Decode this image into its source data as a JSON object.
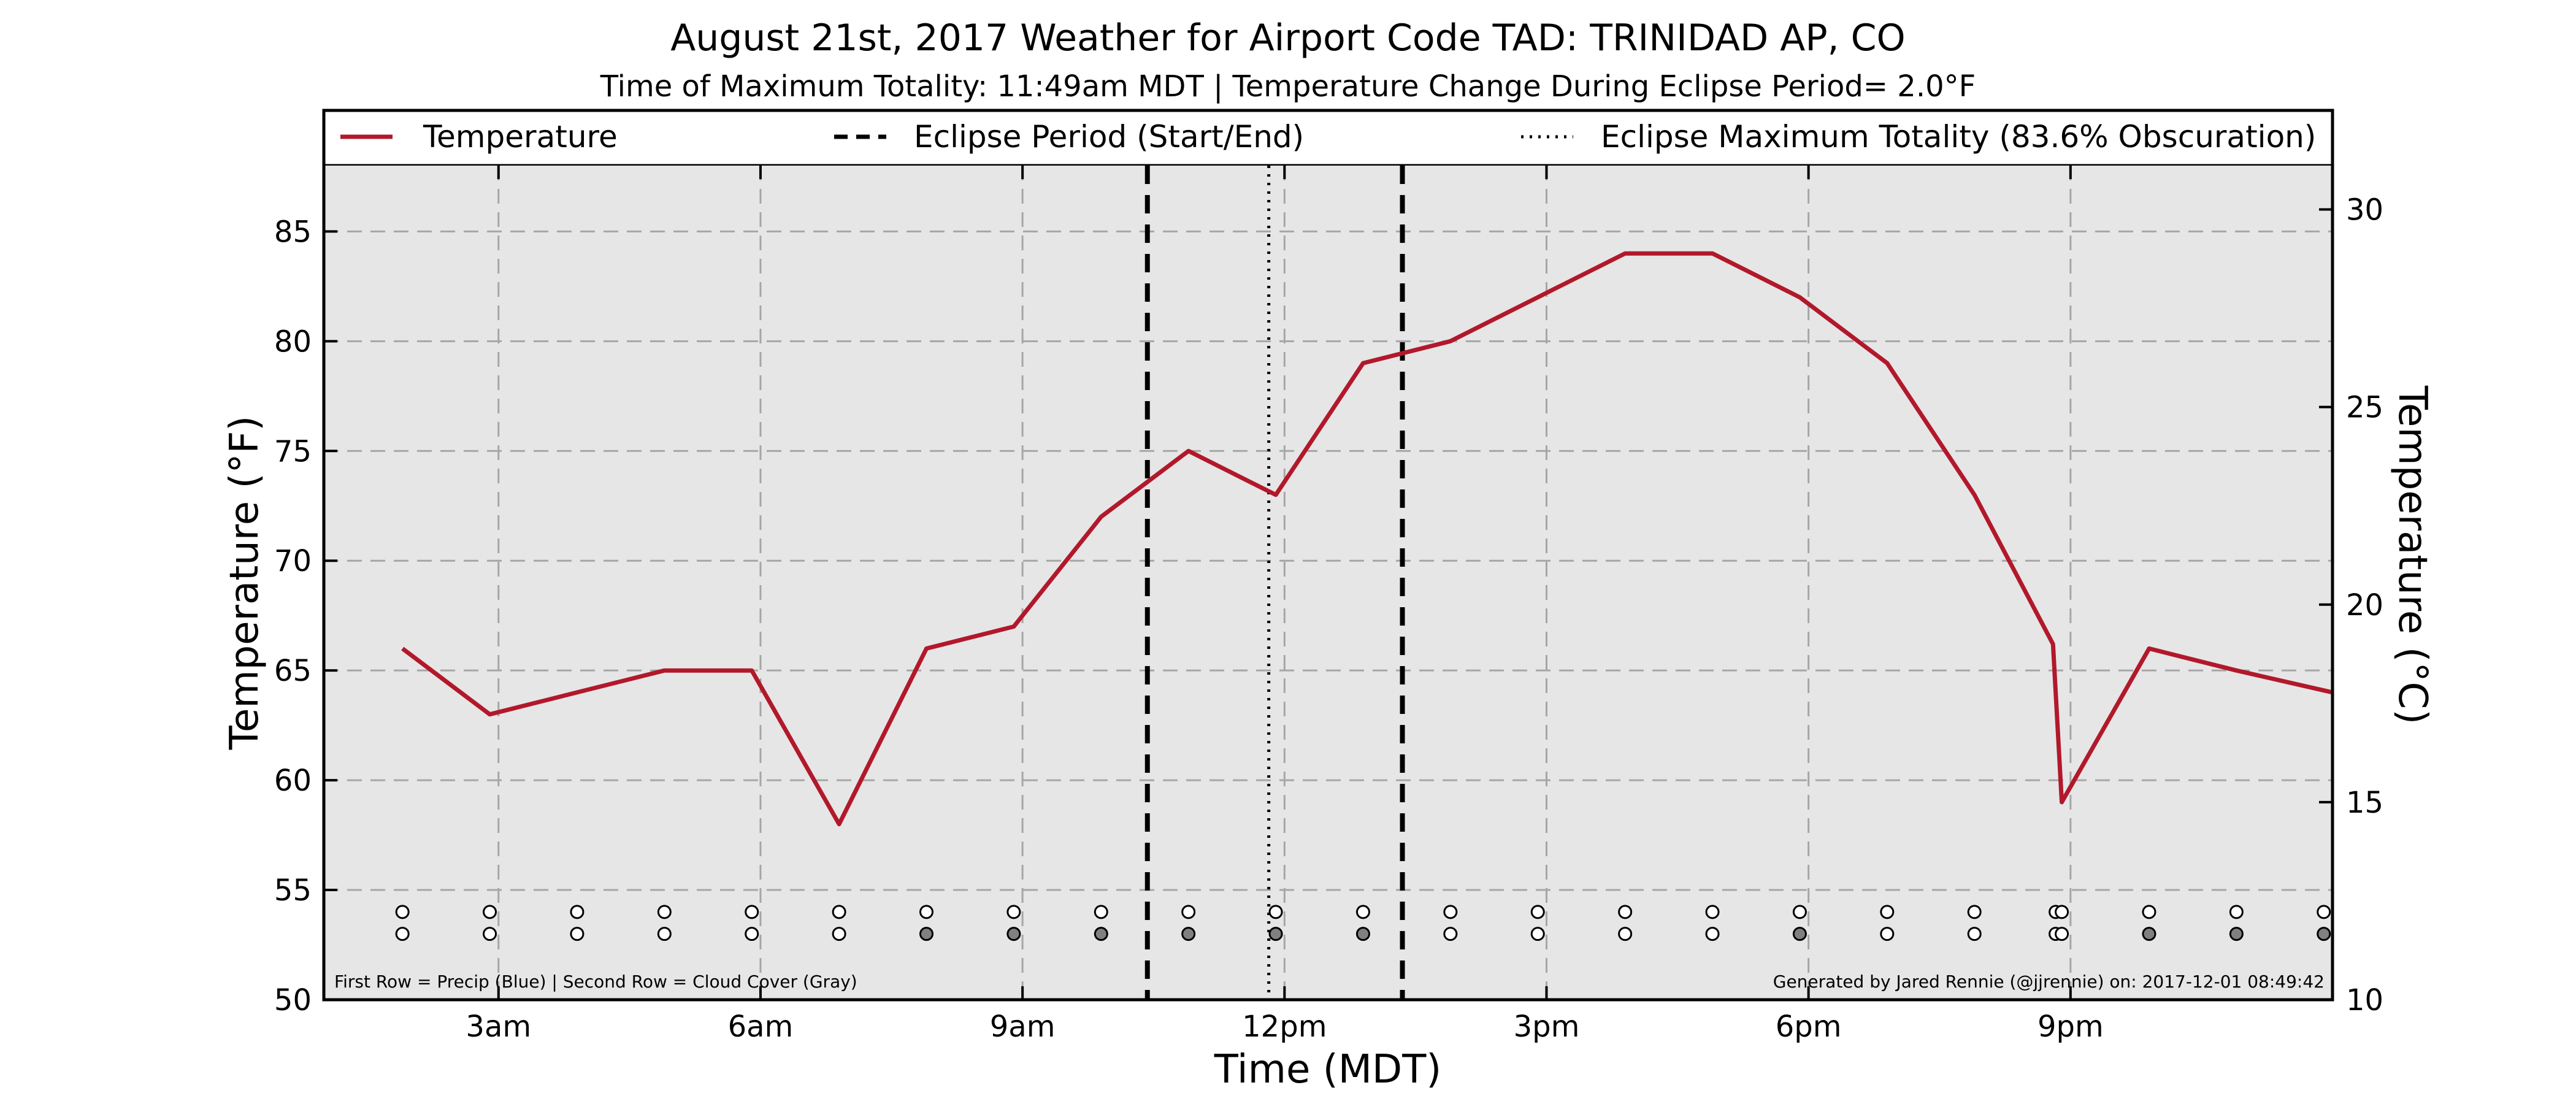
{
  "chart_data": {
    "type": "line",
    "title": "August 21st, 2017 Weather for Airport Code TAD: TRINIDAD AP, CO",
    "subtitle": "Time of Maximum Totality: 11:49am MDT | Temperature Change During Eclipse Period= 2.0°F",
    "xlabel": "Time (MDT)",
    "ylabel": "Temperature (°F)",
    "ylabel_right": "Temperature (°C)",
    "xlim": [
      1.0,
      24.0
    ],
    "ylim": [
      50,
      88
    ],
    "ylim_right": [
      10,
      31.11
    ],
    "x_ticks": [
      {
        "value": 3,
        "label": "3am"
      },
      {
        "value": 6,
        "label": "6am"
      },
      {
        "value": 9,
        "label": "9am"
      },
      {
        "value": 12,
        "label": "12pm"
      },
      {
        "value": 15,
        "label": "3pm"
      },
      {
        "value": 18,
        "label": "6pm"
      },
      {
        "value": 21,
        "label": "9pm"
      }
    ],
    "y_ticks": [
      50,
      55,
      60,
      65,
      70,
      75,
      80,
      85
    ],
    "y_ticks_right": [
      10,
      15,
      20,
      25,
      30
    ],
    "grid": true,
    "legend_position": "top",
    "legend": [
      {
        "label": "Temperature",
        "style": "solid"
      },
      {
        "label": "Eclipse Period (Start/End)",
        "style": "dashed"
      },
      {
        "label": "Eclipse Maximum Totality (83.6% Obscuration)",
        "style": "dotted"
      }
    ],
    "series": [
      {
        "name": "Temperature",
        "color": "#b2182b",
        "points": [
          [
            1.9,
            66
          ],
          [
            2.9,
            63
          ],
          [
            3.9,
            64
          ],
          [
            4.9,
            65
          ],
          [
            5.5,
            65
          ],
          [
            5.9,
            65
          ],
          [
            6.9,
            58
          ],
          [
            7.9,
            66
          ],
          [
            8.9,
            67
          ],
          [
            9.9,
            72
          ],
          [
            10.9,
            75
          ],
          [
            11.9,
            73
          ],
          [
            12.9,
            79
          ],
          [
            13.9,
            80
          ],
          [
            14.9,
            82
          ],
          [
            15.9,
            84
          ],
          [
            16.9,
            84
          ],
          [
            17.9,
            82
          ],
          [
            18.9,
            79
          ],
          [
            19.9,
            73
          ],
          [
            20.8,
            66.2
          ],
          [
            20.9,
            59
          ],
          [
            21.9,
            66
          ],
          [
            22.9,
            65
          ],
          [
            24.0,
            64
          ]
        ]
      }
    ],
    "eclipse_start": 10.43,
    "eclipse_end": 13.35,
    "eclipse_max": 11.82,
    "precip_row": {
      "x": [
        1.9,
        2.9,
        3.9,
        4.9,
        5.9,
        6.9,
        7.9,
        8.9,
        9.9,
        10.9,
        11.9,
        12.9,
        13.9,
        14.9,
        15.9,
        16.9,
        17.9,
        18.9,
        19.9,
        20.83,
        20.9,
        21.9,
        22.9,
        23.9
      ],
      "states": [
        "none",
        "none",
        "none",
        "none",
        "none",
        "none",
        "none",
        "none",
        "none",
        "none",
        "none",
        "none",
        "none",
        "none",
        "none",
        "none",
        "none",
        "none",
        "none",
        "none",
        "none",
        "none",
        "none",
        "none"
      ]
    },
    "cloud_row": {
      "x": [
        1.9,
        2.9,
        3.9,
        4.9,
        5.9,
        6.9,
        7.9,
        8.9,
        9.9,
        10.9,
        11.9,
        12.9,
        13.9,
        14.9,
        15.9,
        16.9,
        17.9,
        18.9,
        19.9,
        20.83,
        20.9,
        21.9,
        22.9,
        23.9
      ],
      "states": [
        "clear",
        "clear",
        "clear",
        "clear",
        "clear",
        "clear",
        "cloudy",
        "cloudy",
        "cloudy",
        "cloudy",
        "cloudy",
        "cloudy",
        "clear",
        "clear",
        "clear",
        "clear",
        "cloudy",
        "clear",
        "clear",
        "clear",
        "clear",
        "cloudy",
        "cloudy",
        "cloudy"
      ]
    },
    "footer_left": "First Row = Precip (Blue) | Second Row = Cloud Cover (Gray)",
    "footer_right": "Generated by Jared Rennie (@jjrennie) on: 2017-12-01 08:49:42",
    "colors": {
      "temperature": "#b2182b",
      "plot_background": "#e6e6e6",
      "grid": "#a6a6a6",
      "cloud_fill": "#808080",
      "clear_fill": "#ffffff"
    }
  }
}
